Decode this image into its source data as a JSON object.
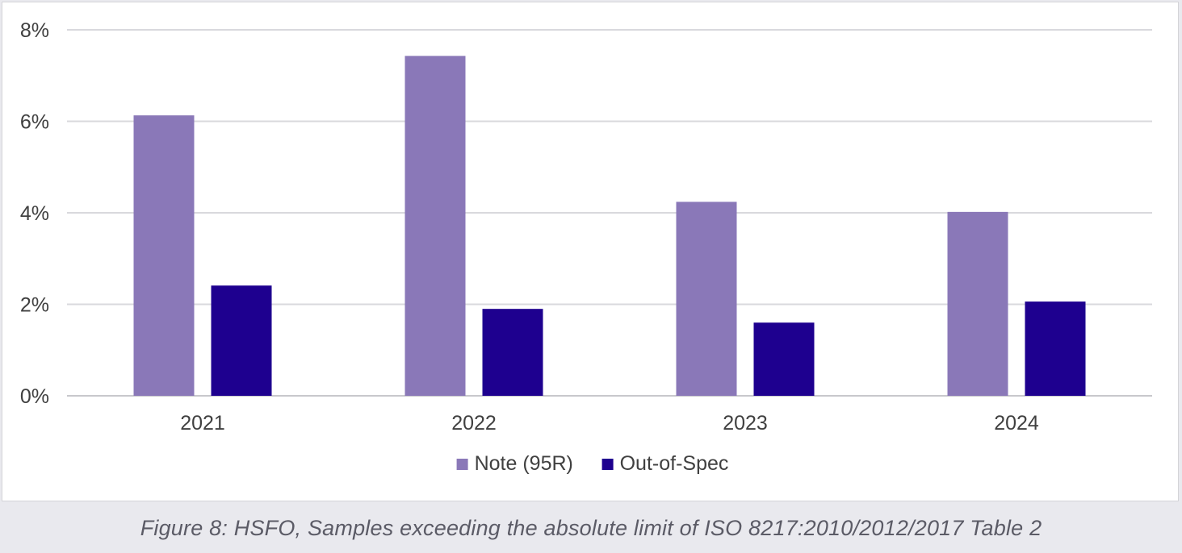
{
  "chart_data": {
    "type": "bar",
    "categories": [
      "2021",
      "2022",
      "2023",
      "2024"
    ],
    "series": [
      {
        "name": "Note (95R)",
        "values": [
          6.13,
          7.43,
          4.24,
          4.02
        ],
        "color": "#8a78b8"
      },
      {
        "name": "Out-of-Spec",
        "values": [
          2.41,
          1.9,
          1.6,
          2.06
        ],
        "color": "#1e008f"
      }
    ],
    "ylim": [
      0,
      8
    ],
    "yticks": [
      0,
      2,
      4,
      6,
      8
    ],
    "ytick_labels": [
      "0%",
      "2%",
      "4%",
      "6%",
      "8%"
    ],
    "grid": true,
    "legend_position": "bottom"
  },
  "caption": "Figure 8: HSFO, Samples exceeding the absolute limit of ISO 8217:2010/2012/2017 Table 2"
}
